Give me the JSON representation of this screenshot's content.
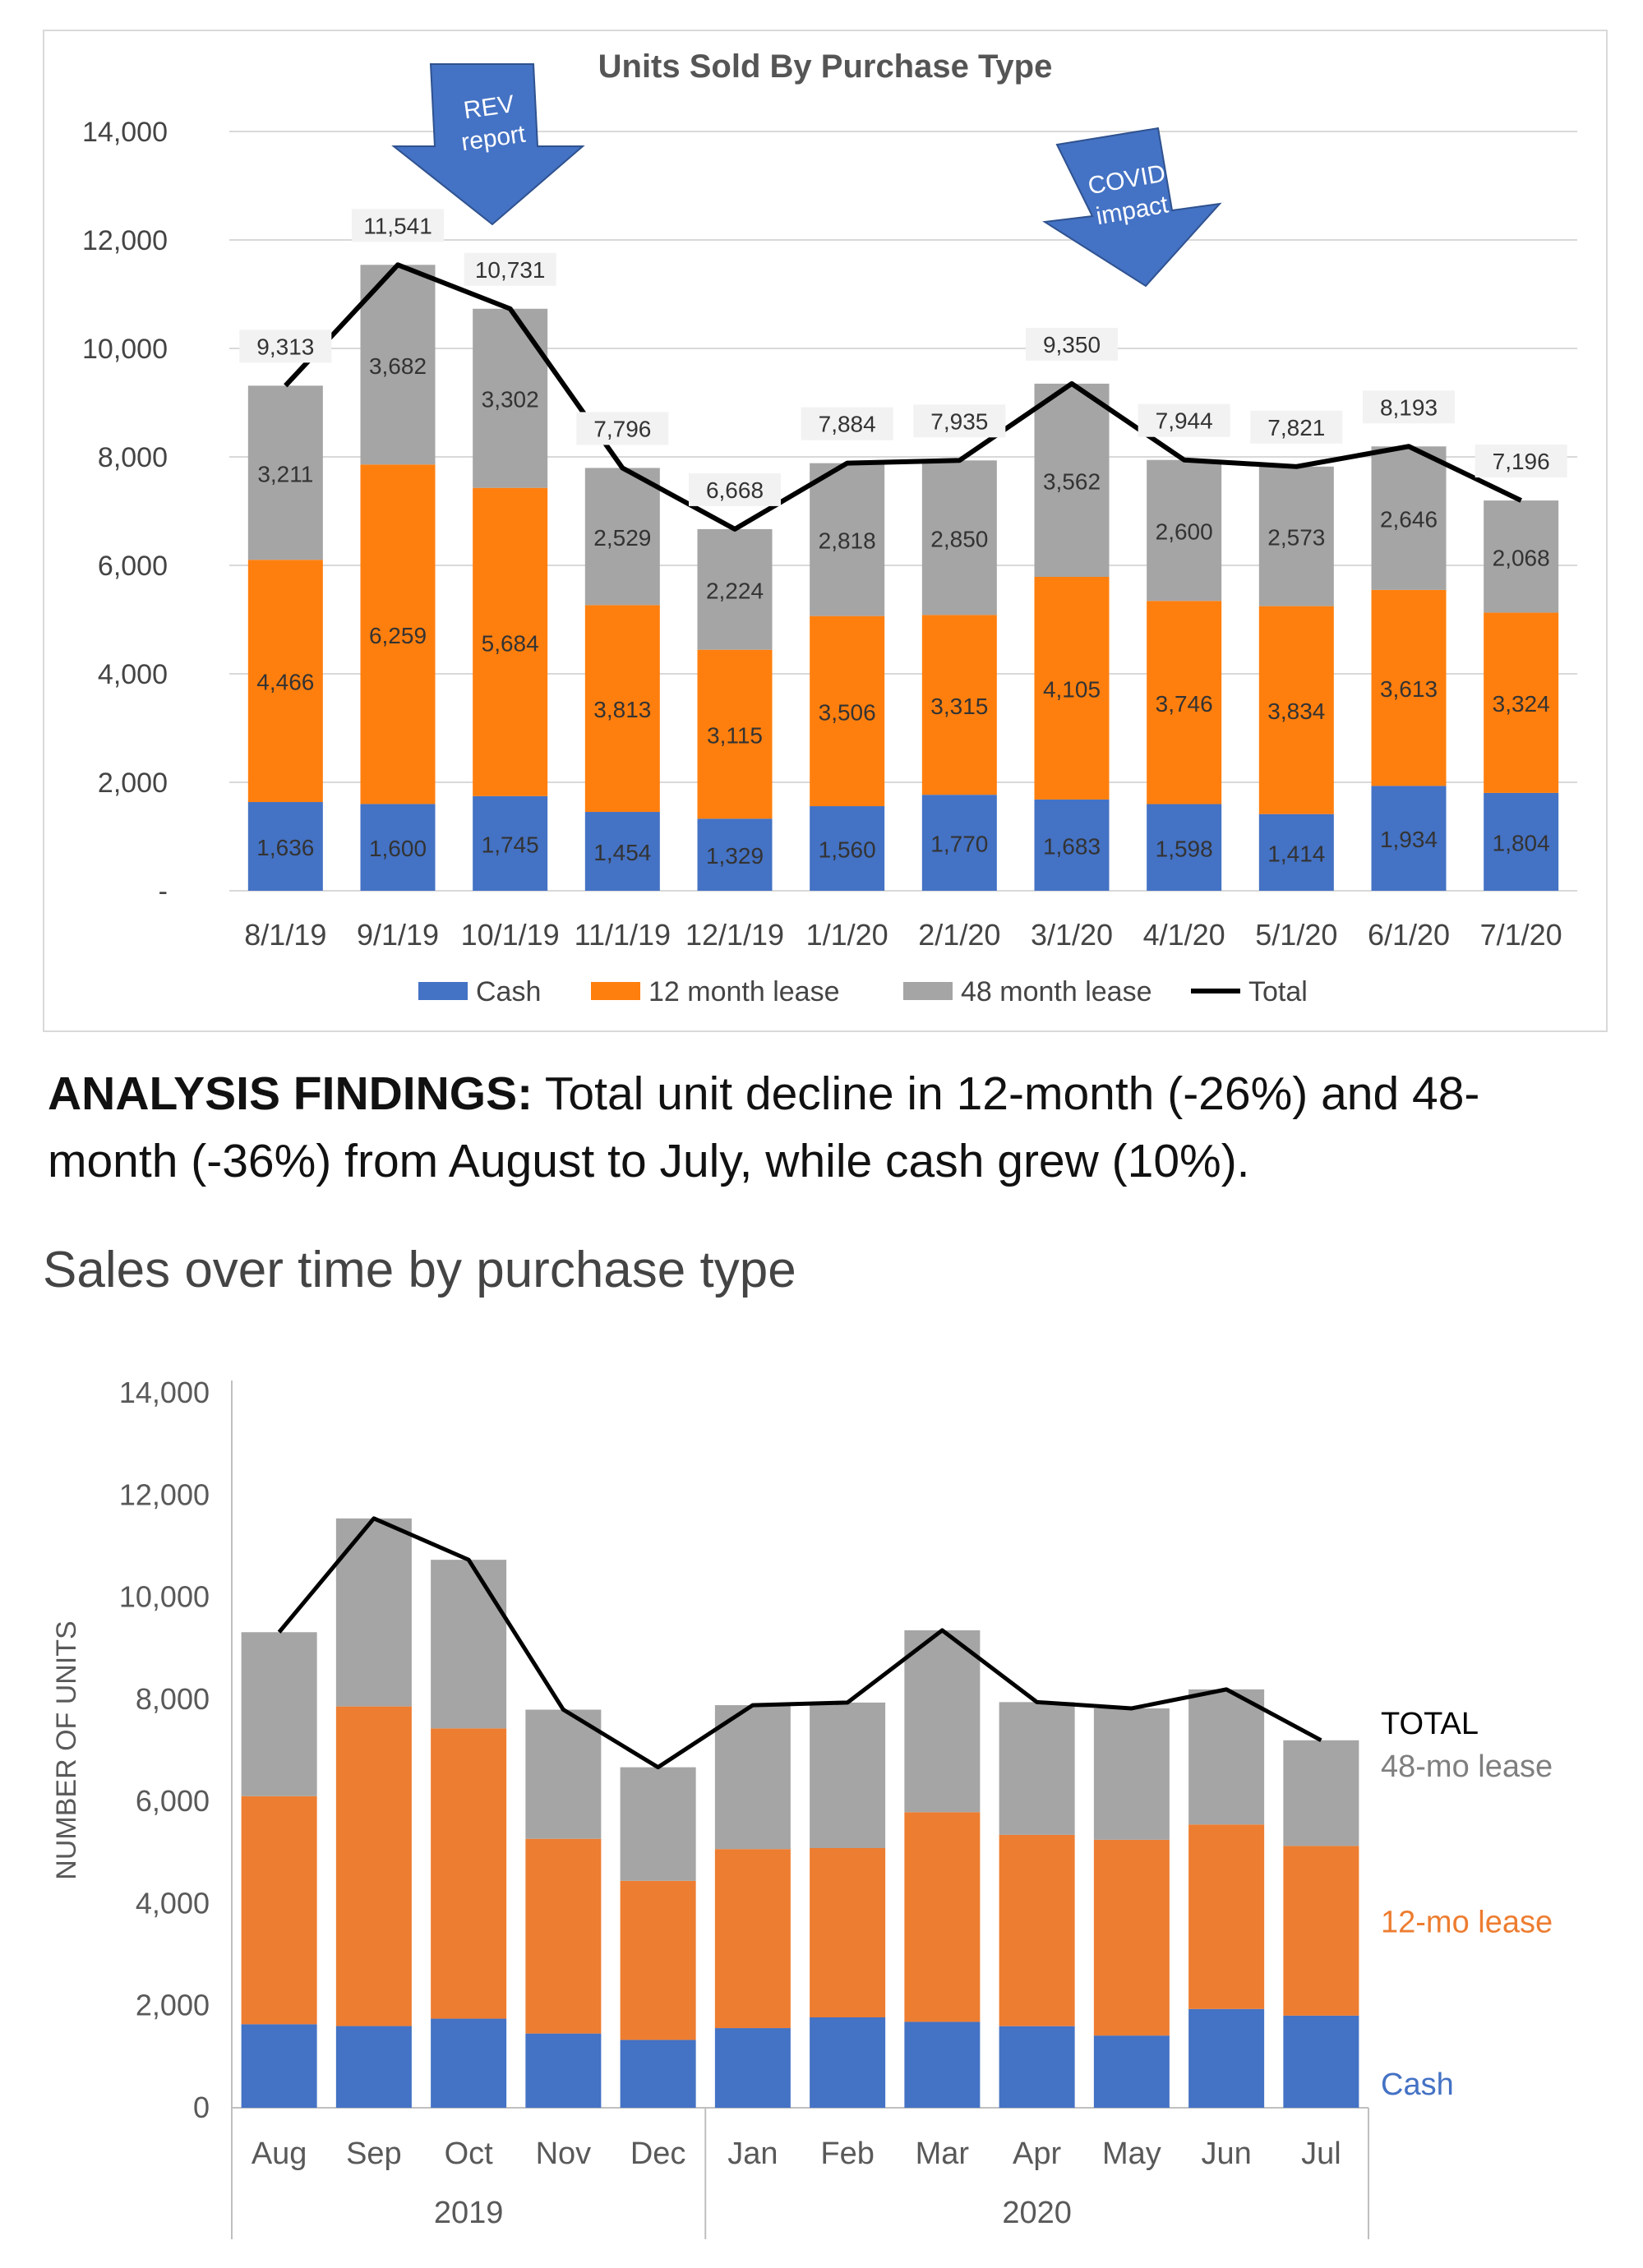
{
  "findings": {
    "label": "ANALYSIS FINDINGS:",
    "text": " Total unit decline in 12-month (-26%) and 48-month (-36%) from August to July, while cash grew (10%)."
  },
  "chart_data": [
    {
      "type": "bar",
      "stacked": true,
      "title": "Units Sold By Purchase Type",
      "categories": [
        "8/1/19",
        "9/1/19",
        "10/1/19",
        "11/1/19",
        "12/1/19",
        "1/1/20",
        "2/1/20",
        "3/1/20",
        "4/1/20",
        "5/1/20",
        "6/1/20",
        "7/1/20"
      ],
      "series": [
        {
          "name": "Cash",
          "color": "#4472c4",
          "values": [
            1636,
            1600,
            1745,
            1454,
            1329,
            1560,
            1770,
            1683,
            1598,
            1414,
            1934,
            1804
          ]
        },
        {
          "name": "12 month lease",
          "color": "#ff7f0e",
          "values": [
            4466,
            6259,
            5684,
            3813,
            3115,
            3506,
            3315,
            4105,
            3746,
            3834,
            3613,
            3324
          ]
        },
        {
          "name": "48 month lease",
          "color": "#a5a5a5",
          "values": [
            3211,
            3682,
            3302,
            2529,
            2224,
            2818,
            2850,
            3562,
            2600,
            2573,
            2646,
            2068
          ]
        },
        {
          "name": "Total",
          "type": "line",
          "color": "#000000",
          "values": [
            9313,
            11541,
            10731,
            7796,
            6668,
            7884,
            7935,
            9350,
            7944,
            7821,
            8193,
            7196
          ]
        }
      ],
      "yticks": [
        "-",
        "2,000",
        "4,000",
        "6,000",
        "8,000",
        "10,000",
        "12,000",
        "14,000"
      ],
      "ylim": [
        0,
        14000
      ],
      "legend_position": "bottom",
      "annotations": [
        {
          "lines": [
            "REV",
            "report"
          ],
          "color": "#4472c4"
        },
        {
          "lines": [
            "COVID",
            "impact"
          ],
          "color": "#4472c4"
        }
      ]
    },
    {
      "type": "bar",
      "stacked": true,
      "title": "Sales over time by purchase type",
      "ylabel": "NUMBER OF UNITS",
      "categories": [
        "Aug",
        "Sep",
        "Oct",
        "Nov",
        "Dec",
        "Jan",
        "Feb",
        "Mar",
        "Apr",
        "May",
        "Jun",
        "Jul"
      ],
      "year_groups": [
        {
          "label": "2019",
          "span": 5
        },
        {
          "label": "2020",
          "span": 7
        }
      ],
      "series": [
        {
          "name": "Cash",
          "color": "#4472c4",
          "values": [
            1636,
            1600,
            1745,
            1454,
            1329,
            1560,
            1770,
            1683,
            1598,
            1414,
            1934,
            1804
          ]
        },
        {
          "name": "12-mo lease",
          "color": "#ed7d31",
          "values": [
            4466,
            6259,
            5684,
            3813,
            3115,
            3506,
            3315,
            4105,
            3746,
            3834,
            3613,
            3324
          ]
        },
        {
          "name": "48-mo lease",
          "color": "#a5a5a5",
          "values": [
            3211,
            3682,
            3302,
            2529,
            2224,
            2818,
            2850,
            3562,
            2600,
            2573,
            2646,
            2068
          ]
        },
        {
          "name": "TOTAL",
          "type": "line",
          "color": "#000000",
          "values": [
            9313,
            11541,
            10731,
            7796,
            6668,
            7884,
            7935,
            9350,
            7944,
            7821,
            8193,
            7196
          ]
        }
      ],
      "yticks": [
        "0",
        "2,000",
        "4,000",
        "6,000",
        "8,000",
        "10,000",
        "12,000",
        "14,000"
      ],
      "ylim": [
        0,
        14000
      ],
      "direct_labels": [
        {
          "text": "TOTAL",
          "color": "#000000"
        },
        {
          "text": "48-mo lease",
          "color": "#7f7f7f"
        },
        {
          "text": "12-mo lease",
          "color": "#ed7d31"
        },
        {
          "text": "Cash",
          "color": "#4472c4"
        }
      ]
    }
  ]
}
